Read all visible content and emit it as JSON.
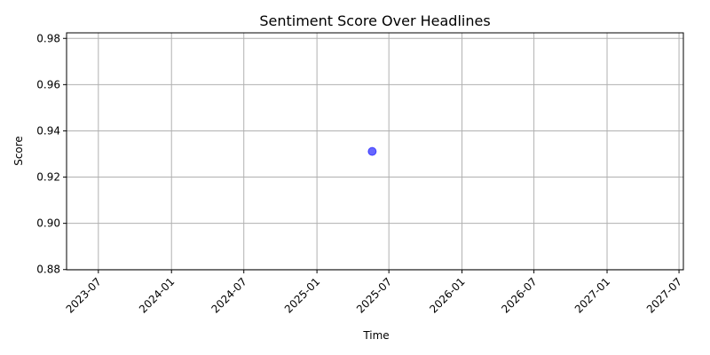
{
  "chart_data": {
    "type": "scatter",
    "title": "Sentiment Score Over Headlines",
    "xlabel": "Time",
    "ylabel": "Score",
    "x_ticks": [
      "2023-07",
      "2024-01",
      "2024-07",
      "2025-01",
      "2025-07",
      "2026-01",
      "2026-07",
      "2027-01",
      "2027-07"
    ],
    "y_ticks": [
      "0.88",
      "0.90",
      "0.92",
      "0.94",
      "0.96",
      "0.98"
    ],
    "xlim": [
      "2023-04-12",
      "2027-07-12"
    ],
    "ylim": [
      0.8799,
      0.9824
    ],
    "grid": true,
    "points": [
      {
        "x": "2025-05-20",
        "y": 0.9311
      }
    ],
    "colors": {
      "point": "#0000ff",
      "grid": "#b0b0b0",
      "axis": "#000000"
    }
  }
}
